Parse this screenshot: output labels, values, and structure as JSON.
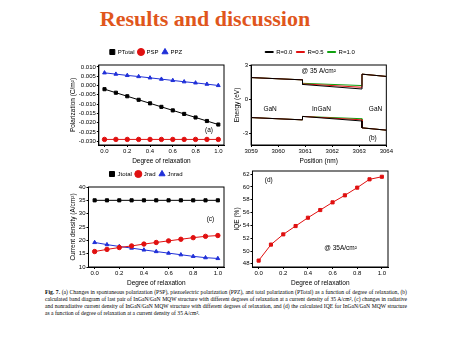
{
  "title": "Results and discussion",
  "caption_label": "Fig. 7.",
  "caption": "(a) Changes in spontaneous polarization (PSP), piezoelectric polarization (PPZ), and total polarization (PTotal) as a function of degree of relaxation, (b) calculated band diagram of last pair of InGaN/GaN MQW structure with different degrees of relaxation at a current density of 35 A/cm², (c) changes in radiative and nonradiative current density of InGaN/GaN MQW structure with different degrees of relaxation, and (d) the calculated IQE for InGaN/GaN MQW structure as a function of degree of relaxation at a current density of 35 A/cm².",
  "chart_data": [
    {
      "type": "line",
      "annotations": [
        "(a)"
      ],
      "x_label": "Degree of relaxation",
      "y_label": "Polarization (C/m²)",
      "x": [
        0,
        0.1,
        0.2,
        0.3,
        0.4,
        0.5,
        0.6,
        0.7,
        0.8,
        0.9,
        1.0
      ],
      "series": [
        {
          "name": "PTotal",
          "color": "#000000",
          "marker": "square",
          "values": [
            -0.002,
            -0.0039,
            -0.0058,
            -0.0077,
            -0.0096,
            -0.0115,
            -0.0134,
            -0.0153,
            -0.0172,
            -0.0191,
            -0.021
          ]
        },
        {
          "name": "PSP",
          "color": "#e01010",
          "marker": "circle",
          "values": [
            -0.029,
            -0.029,
            -0.029,
            -0.029,
            -0.029,
            -0.029,
            -0.029,
            -0.029,
            -0.029,
            -0.029,
            -0.029
          ]
        },
        {
          "name": "PPZ",
          "color": "#2030d8",
          "marker": "triangle",
          "values": [
            0.0068,
            0.0061,
            0.0054,
            0.0048,
            0.0041,
            0.0034,
            0.0027,
            0.002,
            0.0014,
            0.0007,
            0.0
          ]
        }
      ],
      "xlim": [
        -0.05,
        1.05
      ],
      "xticks": [
        {
          "value": 0,
          "label": "0.0"
        },
        0.2,
        0.4,
        0.6,
        0.8,
        {
          "value": 1,
          "label": "1.0"
        }
      ],
      "ylim": [
        -0.032,
        0.011
      ],
      "yticks": [
        {
          "value": -0.03,
          "label": "-0.030"
        },
        -0.025,
        {
          "value": -0.02,
          "label": "-0.020"
        },
        -0.015,
        {
          "value": -0.01,
          "label": "-0.010"
        },
        -0.005,
        {
          "value": 0,
          "label": "0.000"
        },
        0.005,
        {
          "value": 0.01,
          "label": "0.010"
        }
      ],
      "legend": "top",
      "grid": false
    },
    {
      "type": "line",
      "annotations": [
        "@ 35 A/cm²",
        "GaN",
        "InGaN",
        "GaN",
        "(b)"
      ],
      "x_label": "Position (nm)",
      "y_label": "Energy (eV)",
      "x": [
        3059,
        3060.9,
        3060.9,
        3063.1,
        3063.1,
        3064,
        3064,
        3059,
        3060.9,
        3060.9,
        3063.1,
        3063.1,
        3064
      ],
      "series": [
        {
          "name": "R=0.0",
          "color": "#000000",
          "values": [
            1.9,
            1.7,
            1.3,
            0.9,
            2.2,
            2.0,
            null,
            -1.6,
            -1.8,
            -1.5,
            -1.9,
            -2.5,
            -2.7
          ]
        },
        {
          "name": "R=0.5",
          "color": "#e01010",
          "values": [
            1.9,
            1.7,
            1.35,
            1.05,
            2.2,
            2.0,
            null,
            -1.6,
            -1.8,
            -1.5,
            -1.8,
            -2.5,
            -2.7
          ]
        },
        {
          "name": "R=1.0",
          "color": "#10a010",
          "values": [
            1.9,
            1.7,
            1.4,
            1.2,
            2.2,
            2.0,
            null,
            -1.6,
            -1.8,
            -1.5,
            -1.7,
            -2.5,
            -2.7
          ]
        }
      ],
      "xlim": [
        3059,
        3064
      ],
      "xticks": [
        3059,
        3060,
        3061,
        3062,
        3063,
        3064
      ],
      "ylim": [
        -4,
        3
      ],
      "yticks": [
        -3,
        0,
        3
      ],
      "legend": "top",
      "grid": false
    },
    {
      "type": "line",
      "annotations": [
        "(c)"
      ],
      "x_label": "Degree of relaxation",
      "y_label": "Current density (A/cm²)",
      "x": [
        0,
        0.1,
        0.2,
        0.3,
        0.4,
        0.5,
        0.6,
        0.7,
        0.8,
        0.9,
        1.0
      ],
      "series": [
        {
          "name": "Jtotal",
          "color": "#000000",
          "marker": "square",
          "values": [
            35,
            35,
            35,
            35,
            35,
            35,
            35,
            35,
            35,
            35,
            35
          ]
        },
        {
          "name": "Jrad",
          "color": "#e01010",
          "marker": "circle",
          "values": [
            15.8,
            16.6,
            17.3,
            17.9,
            18.6,
            19.2,
            19.8,
            20.4,
            21.0,
            21.5,
            21.8
          ]
        },
        {
          "name": "Jnrad",
          "color": "#2030d8",
          "marker": "triangle",
          "values": [
            19.2,
            18.4,
            17.7,
            17.1,
            16.4,
            15.8,
            15.2,
            14.6,
            14.0,
            13.5,
            13.2
          ]
        }
      ],
      "xlim": [
        -0.05,
        1.05
      ],
      "xticks": [
        {
          "value": 0,
          "label": "0.0"
        },
        0.2,
        0.4,
        0.6,
        0.8,
        {
          "value": 1,
          "label": "1.0"
        }
      ],
      "ylim": [
        10,
        40
      ],
      "yticks": [
        10,
        15,
        20,
        25,
        30,
        35,
        40
      ],
      "legend": "top",
      "grid": false
    },
    {
      "type": "line",
      "annotations": [
        "(d)",
        "@ 35A/cm²"
      ],
      "x_label": "Degree of relaxation",
      "y_label": "IQE (%)",
      "x": [
        0,
        0.1,
        0.2,
        0.3,
        0.4,
        0.5,
        0.6,
        0.7,
        0.8,
        0.9,
        1.0
      ],
      "values": [
        48.5,
        51.0,
        52.6,
        53.9,
        55.2,
        56.4,
        57.6,
        58.7,
        59.9,
        61.2,
        61.6
      ],
      "color": "#e01010",
      "marker": "square",
      "xlim": [
        -0.05,
        1.05
      ],
      "xticks": [
        {
          "value": 0,
          "label": "0.0"
        },
        0.2,
        0.4,
        0.6,
        0.8,
        {
          "value": 1,
          "label": "1.0"
        }
      ],
      "ylim": [
        47.5,
        62.5
      ],
      "yticks": [
        48,
        50,
        52,
        54,
        56,
        58,
        60,
        62
      ],
      "grid": false
    }
  ]
}
